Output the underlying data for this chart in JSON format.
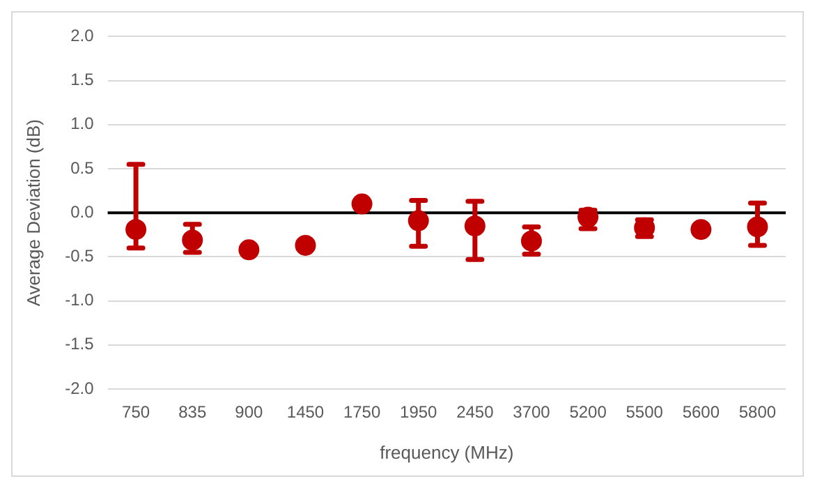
{
  "chart_data": {
    "type": "scatter",
    "xlabel": "frequency (MHz)",
    "ylabel": "Average Deviation (dB)",
    "categories": [
      "750",
      "835",
      "900",
      "1450",
      "1750",
      "1950",
      "2450",
      "3700",
      "5200",
      "5500",
      "5600",
      "5800"
    ],
    "series": [
      {
        "color": "#c00000",
        "values": [
          -0.19,
          -0.31,
          -0.42,
          -0.37,
          0.1,
          -0.09,
          -0.15,
          -0.32,
          -0.05,
          -0.17,
          -0.19,
          -0.16
        ],
        "errors": [
          [
            -0.4,
            0.55
          ],
          [
            -0.45,
            -0.13
          ],
          null,
          null,
          null,
          [
            -0.38,
            0.14
          ],
          [
            -0.53,
            0.13
          ],
          [
            -0.47,
            -0.16
          ],
          [
            -0.18,
            0.03
          ],
          [
            -0.27,
            -0.08
          ],
          null,
          [
            -0.37,
            0.11
          ]
        ]
      }
    ],
    "ylim": [
      -2,
      2
    ],
    "yticks": [
      {
        "value": -2,
        "label": "-2.0"
      },
      {
        "value": -1.5,
        "label": "-1.5"
      },
      {
        "value": -1,
        "label": "-1.0"
      },
      {
        "value": -0.5,
        "label": "-0.5"
      },
      {
        "value": 0,
        "label": "0.0"
      },
      {
        "value": 0.5,
        "label": "0.5"
      },
      {
        "value": 1,
        "label": "1.0"
      },
      {
        "value": 1.5,
        "label": "1.5"
      },
      {
        "value": 2,
        "label": "2.0"
      }
    ],
    "grid": "y",
    "marker": "circle",
    "legend": false,
    "ref_lines": [
      {
        "axis": "y",
        "value": 0,
        "color": "#000000"
      }
    ]
  }
}
